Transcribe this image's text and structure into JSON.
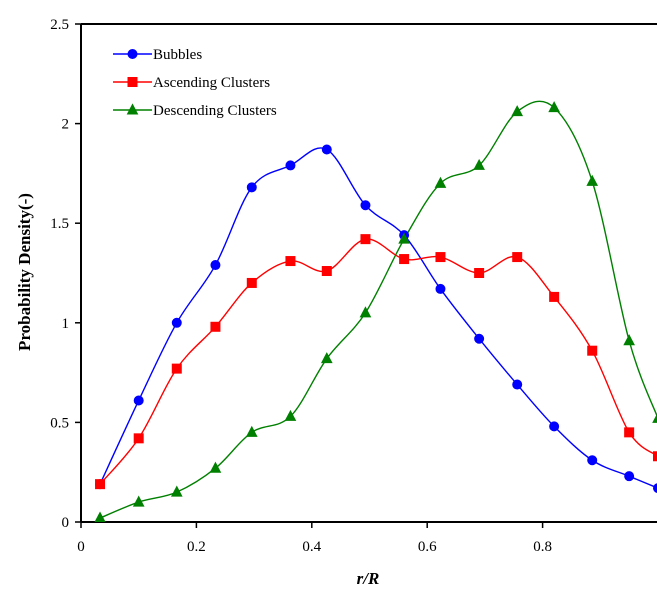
{
  "chart_data": {
    "type": "line",
    "xlabel": "r/R",
    "ylabel": "Probability Density(-)",
    "xlim": [
      0,
      1
    ],
    "ylim": [
      0,
      2.5
    ],
    "xticks": [
      "0",
      "0.2",
      "0.4",
      "0.6",
      "0.8"
    ],
    "yticks": [
      "0",
      "0.5",
      "1",
      "1.5",
      "2",
      "2.5"
    ],
    "grid": false,
    "legend_position": "top-left",
    "series": [
      {
        "name": "Bubbles",
        "color": "#0000ff",
        "marker": "circle",
        "x": [
          0.033,
          0.1,
          0.166,
          0.233,
          0.296,
          0.363,
          0.426,
          0.493,
          0.56,
          0.623,
          0.69,
          0.756,
          0.82,
          0.886,
          0.95,
          1.0
        ],
        "y": [
          0.19,
          0.61,
          1.0,
          1.29,
          1.68,
          1.79,
          1.87,
          1.59,
          1.44,
          1.17,
          0.92,
          0.69,
          0.48,
          0.31,
          0.23,
          0.17
        ]
      },
      {
        "name": "Ascending Clusters",
        "color": "#ff0000",
        "marker": "square",
        "x": [
          0.033,
          0.1,
          0.166,
          0.233,
          0.296,
          0.363,
          0.426,
          0.493,
          0.56,
          0.623,
          0.69,
          0.756,
          0.82,
          0.886,
          0.95,
          1.0
        ],
        "y": [
          0.19,
          0.42,
          0.77,
          0.98,
          1.2,
          1.31,
          1.26,
          1.42,
          1.32,
          1.33,
          1.25,
          1.33,
          1.13,
          0.86,
          0.45,
          0.33
        ]
      },
      {
        "name": "Descending Clusters",
        "color": "#008000",
        "marker": "triangle",
        "x": [
          0.033,
          0.1,
          0.166,
          0.233,
          0.296,
          0.363,
          0.426,
          0.493,
          0.56,
          0.623,
          0.69,
          0.756,
          0.82,
          0.886,
          0.95,
          1.0
        ],
        "y": [
          0.02,
          0.1,
          0.15,
          0.27,
          0.45,
          0.53,
          0.82,
          1.05,
          1.42,
          1.7,
          1.79,
          2.06,
          2.08,
          1.71,
          0.91,
          0.52
        ]
      }
    ]
  }
}
